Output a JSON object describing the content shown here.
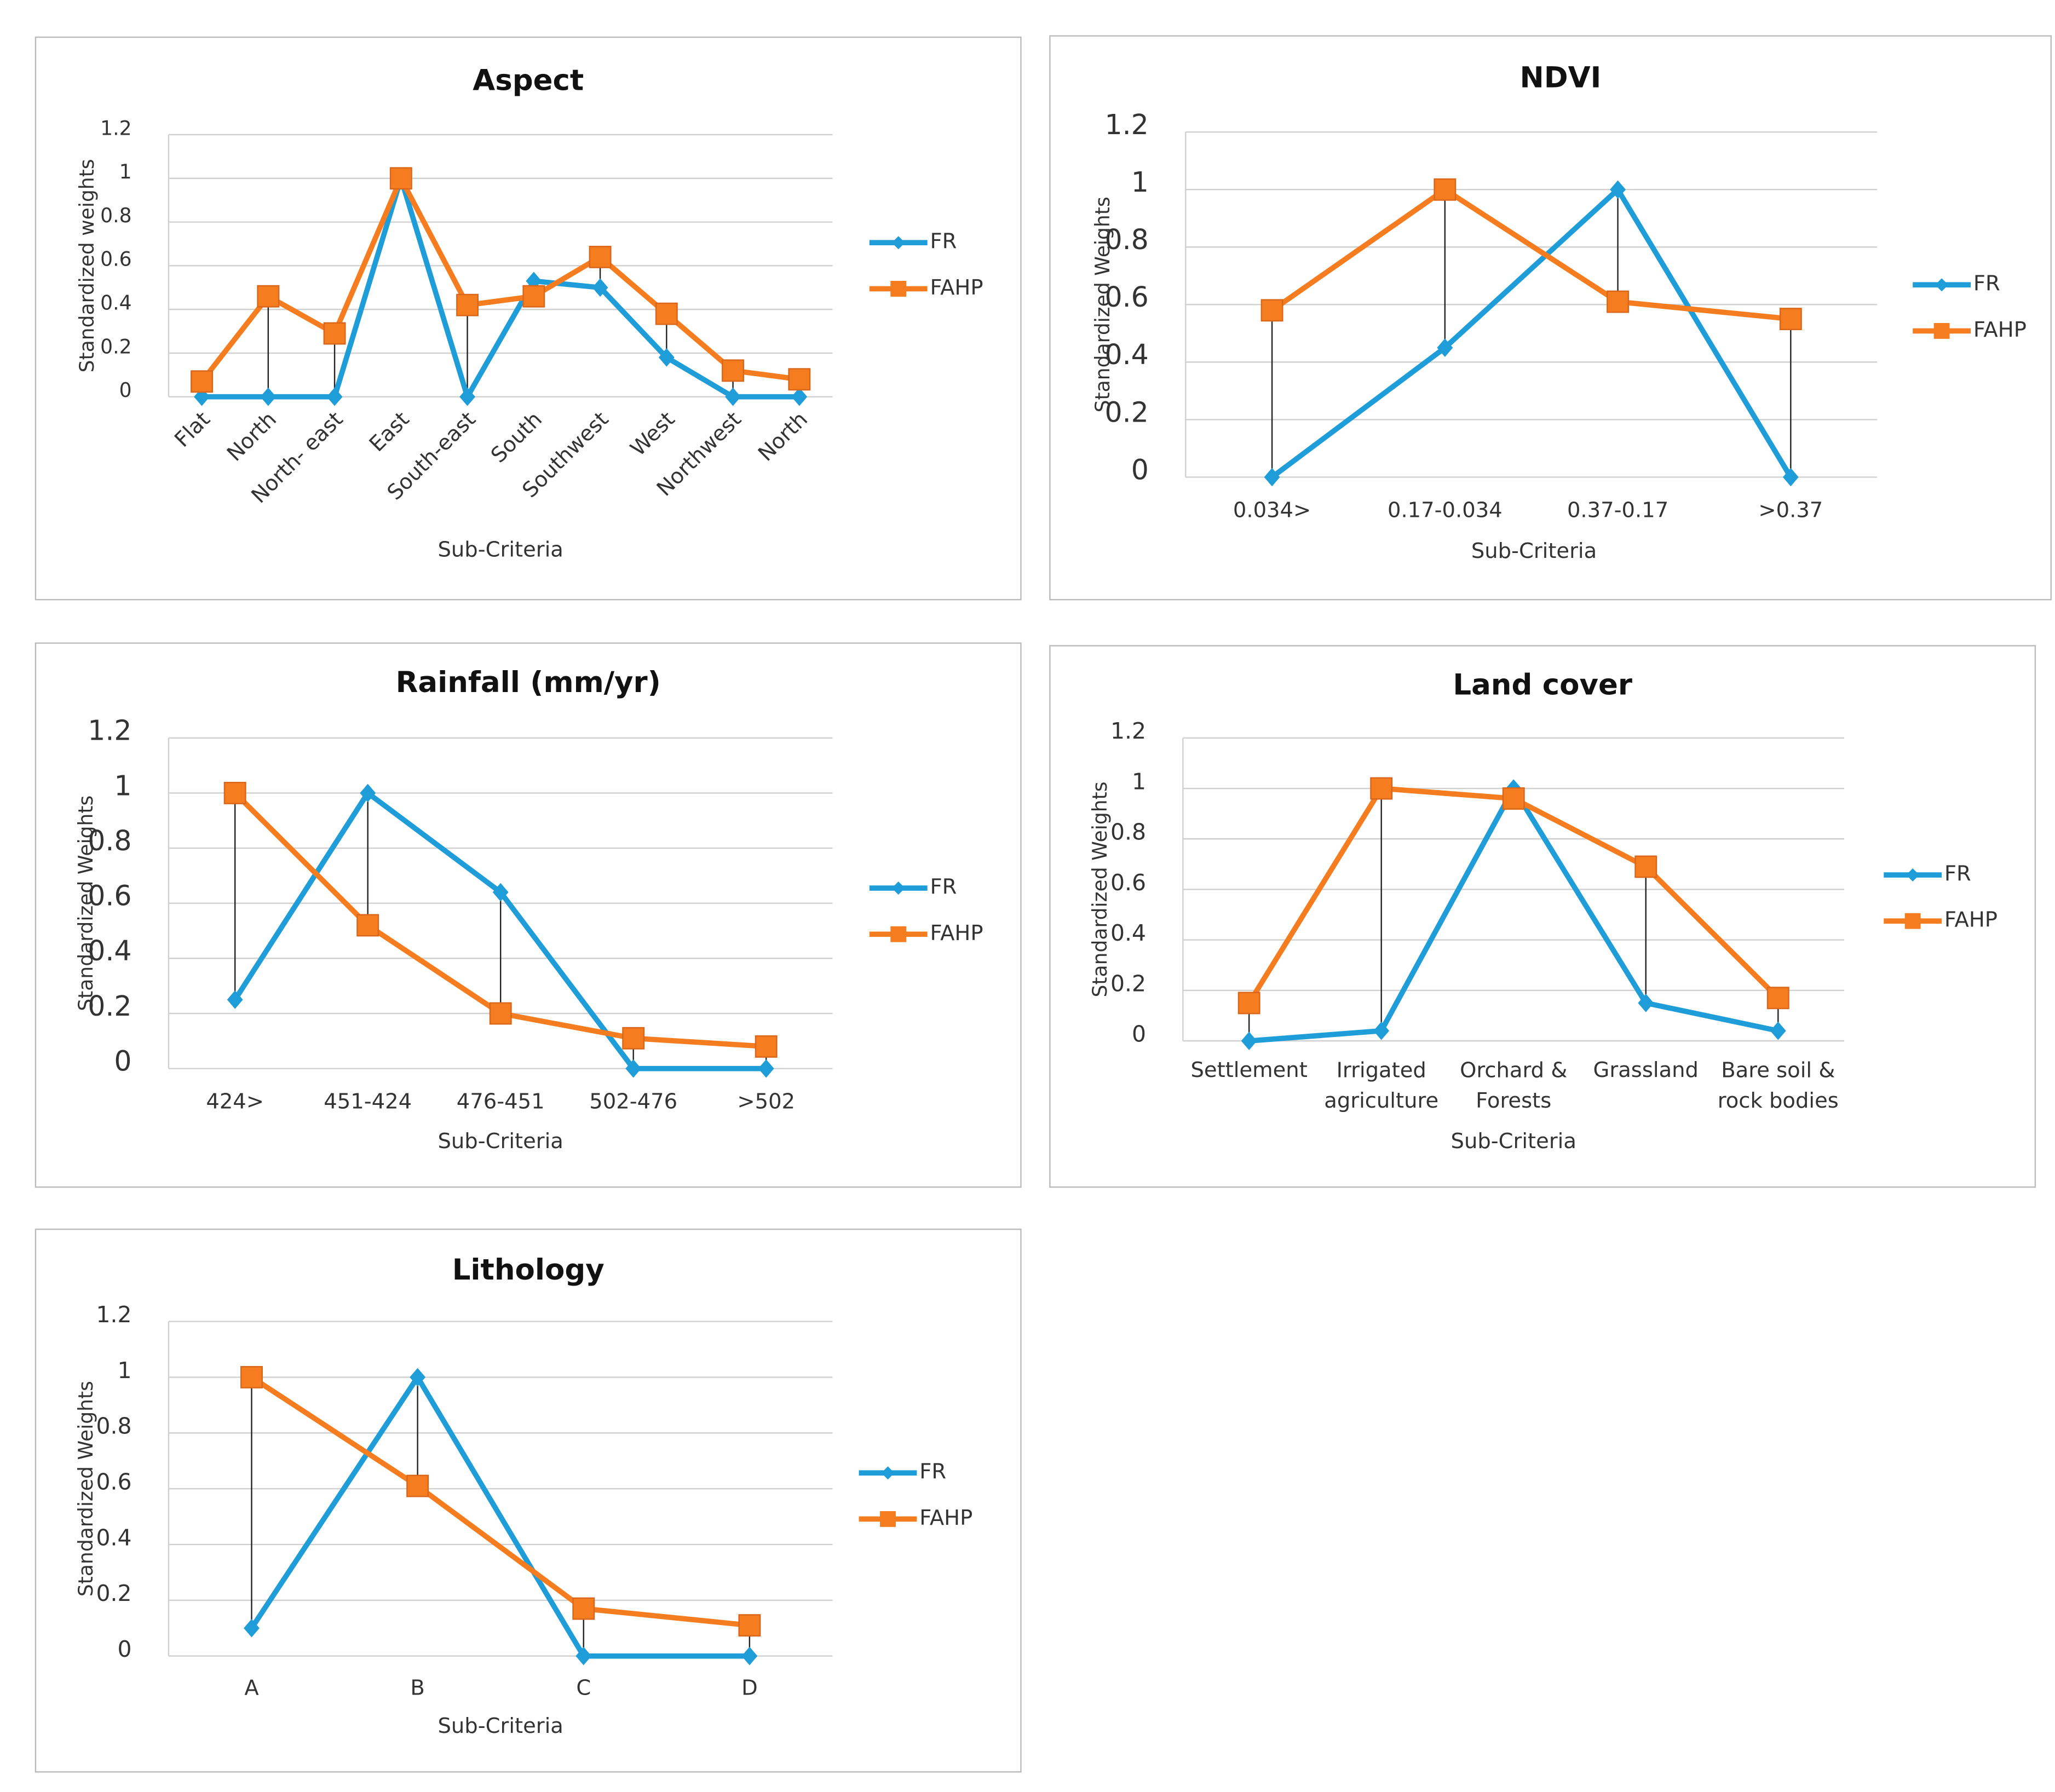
{
  "chart_data": [
    {
      "type": "line",
      "title": "Aspect",
      "x_label": "Sub-Criteria",
      "y_label": "Standardized weights",
      "categories": [
        "Flat",
        "North",
        "North- east",
        "East",
        "South-east",
        "South",
        "Southwest",
        "West",
        "Northwest",
        "North"
      ],
      "series": [
        {
          "name": "FR",
          "color": "#1f9dd9",
          "marker": "diamond",
          "values": [
            0,
            0,
            0,
            1,
            0,
            0.53,
            0.5,
            0.18,
            0,
            0
          ]
        },
        {
          "name": "FAHP",
          "color": "#f57c1f",
          "marker": "square",
          "values": [
            0.07,
            0.46,
            0.29,
            1,
            0.42,
            0.46,
            0.64,
            0.38,
            0.12,
            0.08
          ]
        }
      ],
      "ylim": [
        0,
        1.2
      ],
      "yticks": [
        0,
        0.2,
        0.4,
        0.6,
        0.8,
        1,
        1.2
      ],
      "grid": true,
      "drop_lines": true,
      "legend": "right"
    },
    {
      "type": "line",
      "title": "NDVI",
      "x_label": "Sub-Criteria",
      "y_label": "Standardized Weights",
      "categories": [
        "0.034>",
        "0.17-0.034",
        "0.37-0.17",
        ">0.37"
      ],
      "series": [
        {
          "name": "FR",
          "color": "#1f9dd9",
          "marker": "diamond",
          "values": [
            0,
            0.45,
            1,
            0
          ]
        },
        {
          "name": "FAHP",
          "color": "#f57c1f",
          "marker": "square",
          "values": [
            0.58,
            1,
            0.61,
            0.55
          ]
        }
      ],
      "ylim": [
        0,
        1.2
      ],
      "yticks": [
        0,
        0.2,
        0.4,
        0.6,
        0.8,
        1,
        1.2
      ],
      "grid": true,
      "drop_lines": true,
      "legend": "right"
    },
    {
      "type": "line",
      "title": "Rainfall (mm/yr)",
      "x_label": "Sub-Criteria",
      "y_label": "Standardized Weights",
      "categories": [
        "424>",
        "451-424",
        "476-451",
        "502-476",
        ">502"
      ],
      "series": [
        {
          "name": "FR",
          "color": "#1f9dd9",
          "marker": "diamond",
          "values": [
            0.25,
            1,
            0.64,
            0,
            0
          ]
        },
        {
          "name": "FAHP",
          "color": "#f57c1f",
          "marker": "square",
          "values": [
            1,
            0.52,
            0.2,
            0.11,
            0.08
          ]
        }
      ],
      "ylim": [
        0,
        1.2
      ],
      "yticks": [
        0,
        0.2,
        0.4,
        0.6,
        0.8,
        1,
        1.2
      ],
      "grid": true,
      "drop_lines": true,
      "legend": "right"
    },
    {
      "type": "line",
      "title": "Land cover",
      "x_label": "Sub-Criteria",
      "y_label": "Standardized Weights",
      "categories": [
        "Settlement",
        "Irrigated agriculture",
        "Orchard & Forests",
        "Grassland",
        "Bare soil & rock bodies"
      ],
      "series": [
        {
          "name": "FR",
          "color": "#1f9dd9",
          "marker": "diamond",
          "values": [
            0,
            0.04,
            1,
            0.15,
            0.04
          ]
        },
        {
          "name": "FAHP",
          "color": "#f57c1f",
          "marker": "square",
          "values": [
            0.15,
            1,
            0.96,
            0.69,
            0.17
          ]
        }
      ],
      "ylim": [
        0,
        1.2
      ],
      "yticks": [
        0,
        0.2,
        0.4,
        0.6,
        0.8,
        1,
        1.2
      ],
      "grid": true,
      "drop_lines": true,
      "legend": "right"
    },
    {
      "type": "line",
      "title": "Lithology",
      "x_label": "Sub-Criteria",
      "y_label": "Standardized Weights",
      "categories": [
        "A",
        "B",
        "C",
        "D"
      ],
      "series": [
        {
          "name": "FR",
          "color": "#1f9dd9",
          "marker": "diamond",
          "values": [
            0.1,
            1,
            0,
            0
          ]
        },
        {
          "name": "FAHP",
          "color": "#f57c1f",
          "marker": "square",
          "values": [
            1,
            0.61,
            0.17,
            0.11
          ]
        }
      ],
      "ylim": [
        0,
        1.2
      ],
      "yticks": [
        0,
        0.2,
        0.4,
        0.6,
        0.8,
        1,
        1.2
      ],
      "grid": true,
      "drop_lines": true,
      "legend": "right"
    }
  ]
}
